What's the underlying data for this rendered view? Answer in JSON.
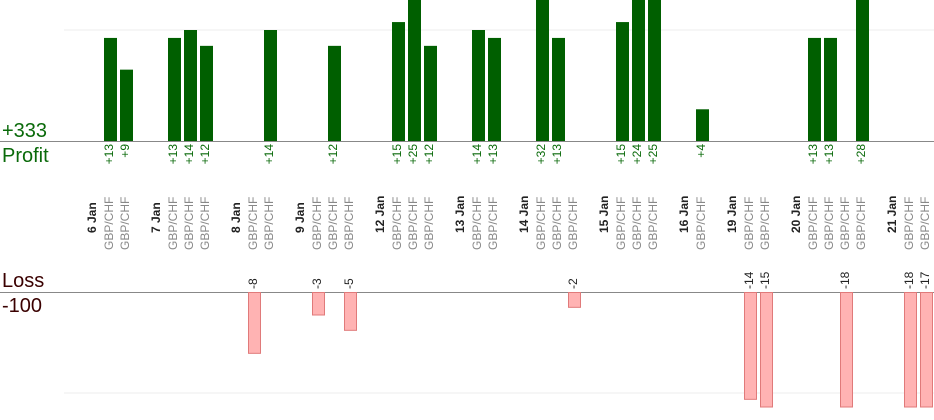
{
  "labels": {
    "profit_total": "+333",
    "profit_word": "Profit",
    "loss_word": "Loss",
    "loss_total": "-100"
  },
  "colors": {
    "profit_bar": "#005f00",
    "profit_text": "#0a6a0a",
    "loss_bar": "#ffb3b3",
    "loss_bar_edge": "#e07a7a",
    "loss_text": "#222222",
    "pair_text": "#888888",
    "date_text": "#222222",
    "axis": "#888888",
    "grid": "#eeeeee"
  },
  "chart_data": {
    "type": "bar",
    "title": "",
    "xlabel": "",
    "ylabel": "",
    "profit_ylim": [
      0,
      14
    ],
    "loss_ylim": [
      -14,
      0
    ],
    "groups": [
      {
        "date": "6 Jan",
        "trades": [
          {
            "pair": "GBP/CHF",
            "value": 13
          },
          {
            "pair": "GBP/CHF",
            "value": 9
          }
        ]
      },
      {
        "date": "7 Jan",
        "trades": [
          {
            "pair": "GBP/CHF",
            "value": 13
          },
          {
            "pair": "GBP/CHF",
            "value": 14
          },
          {
            "pair": "GBP/CHF",
            "value": 12
          }
        ]
      },
      {
        "date": "8 Jan",
        "trades": [
          {
            "pair": "GBP/CHF",
            "value": -8
          },
          {
            "pair": "GBP/CHF",
            "value": 14
          }
        ]
      },
      {
        "date": "9 Jan",
        "trades": [
          {
            "pair": "GBP/CHF",
            "value": -3
          },
          {
            "pair": "GBP/CHF",
            "value": 12
          },
          {
            "pair": "GBP/CHF",
            "value": -5
          }
        ]
      },
      {
        "date": "12 Jan",
        "trades": [
          {
            "pair": "GBP/CHF",
            "value": 15
          },
          {
            "pair": "GBP/CHF",
            "value": 25
          },
          {
            "pair": "GBP/CHF",
            "value": 12
          }
        ]
      },
      {
        "date": "13 Jan",
        "trades": [
          {
            "pair": "GBP/CHF",
            "value": 14
          },
          {
            "pair": "GBP/CHF",
            "value": 13
          }
        ]
      },
      {
        "date": "14 Jan",
        "trades": [
          {
            "pair": "GBP/CHF",
            "value": 32
          },
          {
            "pair": "GBP/CHF",
            "value": 13
          },
          {
            "pair": "GBP/CHF",
            "value": -2
          }
        ]
      },
      {
        "date": "15 Jan",
        "trades": [
          {
            "pair": "GBP/CHF",
            "value": 15
          },
          {
            "pair": "GBP/CHF",
            "value": 24
          },
          {
            "pair": "GBP/CHF",
            "value": 25
          }
        ]
      },
      {
        "date": "16 Jan",
        "trades": [
          {
            "pair": "GBP/CHF",
            "value": 4
          }
        ]
      },
      {
        "date": "19 Jan",
        "trades": [
          {
            "pair": "GBP/CHF",
            "value": -14
          },
          {
            "pair": "GBP/CHF",
            "value": -15
          }
        ]
      },
      {
        "date": "20 Jan",
        "trades": [
          {
            "pair": "GBP/CHF",
            "value": 13
          },
          {
            "pair": "GBP/CHF",
            "value": 13
          },
          {
            "pair": "GBP/CHF",
            "value": -18
          },
          {
            "pair": "GBP/CHF",
            "value": 28
          }
        ]
      },
      {
        "date": "21 Jan",
        "trades": [
          {
            "pair": "GBP/CHF",
            "value": -18
          },
          {
            "pair": "GBP/CHF",
            "value": -17
          }
        ]
      }
    ]
  }
}
